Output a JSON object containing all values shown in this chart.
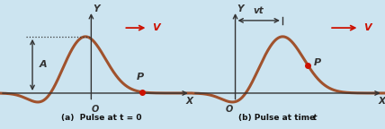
{
  "bg_color": "#cce4f0",
  "wave_color": "#a0522d",
  "wave_lw": 2.2,
  "axis_color": "#333333",
  "text_color": "#111111",
  "red_arrow_color": "#cc1100",
  "point_color": "#cc1100",
  "figsize": [
    4.28,
    1.44
  ],
  "dpi": 100,
  "panel_a_caption": "(a)  Pulse at t = 0",
  "panel_b_caption": "(b) Pulse at time  ",
  "label_Y": "Y",
  "label_X": "X",
  "label_O": "O",
  "label_V": "V",
  "label_A": "A",
  "label_P": "P",
  "label_vt": "vt"
}
